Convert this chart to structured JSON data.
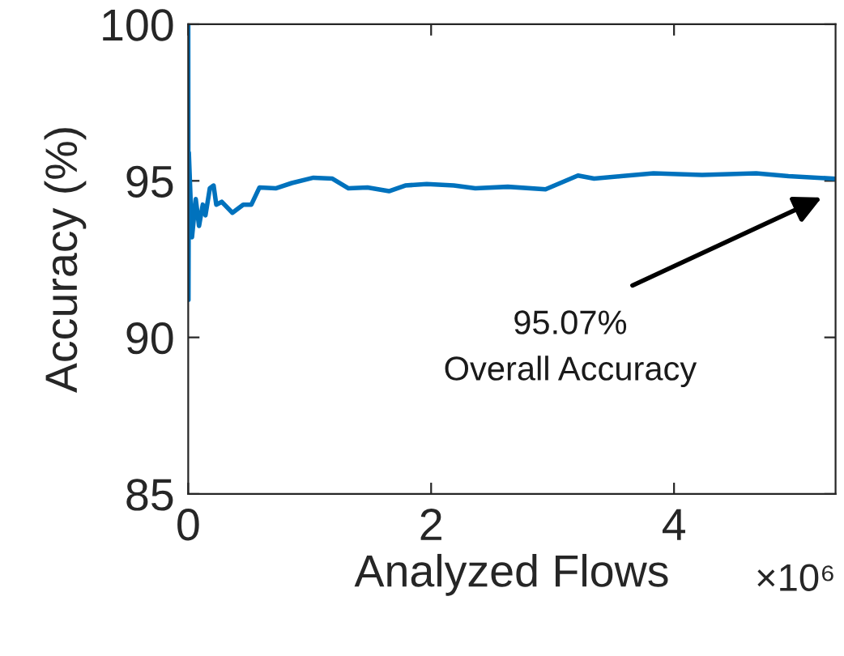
{
  "chart_data": {
    "type": "line",
    "xlabel": "Analyzed Flows",
    "ylabel": "Accuracy (%)",
    "x": [
      0,
      0.002,
      0.005,
      0.031,
      0.062,
      0.089,
      0.12,
      0.142,
      0.178,
      0.209,
      0.231,
      0.276,
      0.364,
      0.453,
      0.52,
      0.587,
      0.72,
      0.853,
      1.031,
      1.187,
      1.32,
      1.476,
      1.653,
      1.787,
      1.964,
      2.187,
      2.364,
      2.631,
      2.942,
      3.209,
      3.342,
      3.564,
      3.831,
      4.231,
      4.676,
      4.942,
      5.32
    ],
    "series": [
      {
        "color": "#0072bd",
        "values": [
          100,
          91.2,
          95.9,
          93.2,
          94.42,
          93.56,
          94.24,
          93.9,
          94.76,
          94.85,
          94.24,
          94.33,
          93.98,
          94.24,
          94.24,
          94.79,
          94.76,
          94.93,
          95.1,
          95.07,
          94.76,
          94.79,
          94.67,
          94.85,
          94.9,
          94.85,
          94.76,
          94.81,
          94.73,
          95.17,
          95.07,
          95.15,
          95.24,
          95.19,
          95.24,
          95.15,
          95.07
        ]
      }
    ],
    "xlim": [
      0,
      5.33
    ],
    "xticks": [
      0,
      2,
      4
    ],
    "ylim": [
      85,
      100
    ],
    "yticks": [
      85,
      90,
      95,
      100
    ],
    "grid": false,
    "legend": false,
    "marker": "none",
    "line_style": "solid",
    "annotations": [
      "95.07%\nOverall Accuracy",
      "×10⁶"
    ]
  }
}
